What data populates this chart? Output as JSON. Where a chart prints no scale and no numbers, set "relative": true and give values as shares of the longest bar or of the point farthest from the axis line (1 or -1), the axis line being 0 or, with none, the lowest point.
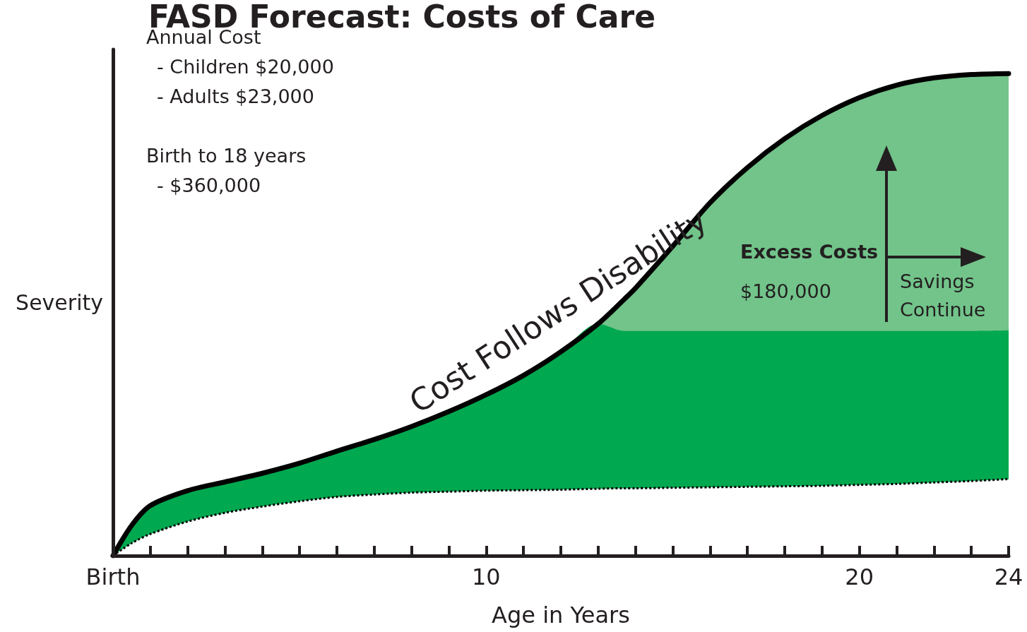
{
  "chart_data": {
    "type": "area",
    "title": "FASD Forecast: Costs of Care",
    "xlabel": "Age in Years",
    "ylabel": "Severity",
    "relative": true,
    "grid": false,
    "xlim": [
      0,
      24
    ],
    "xticks": [
      {
        "value": 0,
        "label": "Birth"
      },
      {
        "value": 1,
        "label": null
      },
      {
        "value": 2,
        "label": null
      },
      {
        "value": 3,
        "label": null
      },
      {
        "value": 4,
        "label": null
      },
      {
        "value": 5,
        "label": null
      },
      {
        "value": 6,
        "label": null
      },
      {
        "value": 7,
        "label": null
      },
      {
        "value": 8,
        "label": null
      },
      {
        "value": 9,
        "label": null
      },
      10,
      {
        "value": 11,
        "label": null
      },
      {
        "value": 12,
        "label": null
      },
      {
        "value": 13,
        "label": null
      },
      {
        "value": 14,
        "label": null
      },
      {
        "value": 15,
        "label": null
      },
      {
        "value": 16,
        "label": null
      },
      {
        "value": 17,
        "label": null
      },
      {
        "value": 18,
        "label": null
      },
      {
        "value": 19,
        "label": null
      },
      20,
      {
        "value": 21,
        "label": null
      },
      {
        "value": 22,
        "label": null
      },
      {
        "value": 23,
        "label": null
      },
      24
    ],
    "x": [
      0,
      0.5,
      1,
      2,
      3,
      4,
      5,
      6,
      7,
      8,
      9,
      10,
      11,
      12,
      13,
      13.7,
      14,
      15,
      16,
      17,
      18,
      19,
      20,
      21,
      22,
      23,
      24
    ],
    "series": [
      {
        "color": "#72c48a",
        "x": [
          13,
          13.7,
          14,
          15,
          16,
          17,
          18,
          19,
          20,
          21,
          22,
          23,
          24
        ],
        "values": [
          0.481,
          0.532,
          0.555,
          0.642,
          0.732,
          0.805,
          0.865,
          0.913,
          0.95,
          0.976,
          0.991,
          0.998,
          1
        ]
      },
      {
        "color": "#00a84f",
        "values": [
          0,
          0.063,
          0.104,
          0.135,
          0.153,
          0.171,
          0.192,
          0.217,
          0.241,
          0.268,
          0.299,
          0.334,
          0.374,
          0.423,
          0.481,
          0.466,
          0.466,
          0.466,
          0.466,
          0.466,
          0.466,
          0.466,
          0.466,
          0.466,
          0.466,
          0.466,
          0.467
        ]
      },
      {
        "color": "#ffffff",
        "line_style": "dotted",
        "values": [
          0,
          0.026,
          0.045,
          0.071,
          0.089,
          0.102,
          0.113,
          0.122,
          0.127,
          0.131,
          0.133,
          0.135,
          0.136,
          0.137,
          0.139,
          0.14,
          0.14,
          0.141,
          0.142,
          0.143,
          0.144,
          0.145,
          0.147,
          0.149,
          0.152,
          0.155,
          0.159
        ]
      },
      {
        "type": "line",
        "color": "#000000",
        "line_style": "solid",
        "values": [
          0,
          0.063,
          0.104,
          0.135,
          0.153,
          0.171,
          0.192,
          0.217,
          0.241,
          0.268,
          0.299,
          0.334,
          0.374,
          0.423,
          0.481,
          0.532,
          0.555,
          0.642,
          0.732,
          0.805,
          0.865,
          0.913,
          0.95,
          0.976,
          0.991,
          0.998,
          1
        ]
      }
    ],
    "annotations": [
      "Annual Cost",
      "- Children $20,000",
      "- Adults $23,000",
      "Birth to 18 years",
      "- $360,000",
      "Cost Follows Disability",
      "Excess Costs",
      "$180,000",
      "Savings\nContinue"
    ]
  }
}
